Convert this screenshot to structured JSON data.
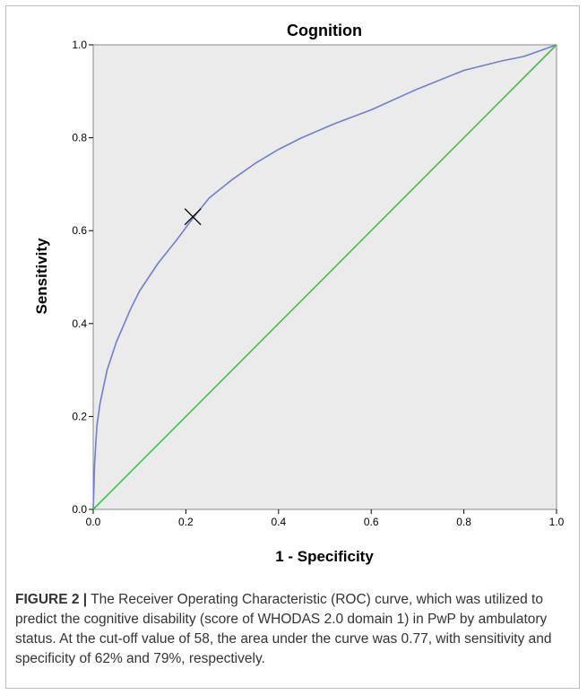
{
  "chart_data": {
    "type": "line",
    "title": "Cognition",
    "xlabel": "1 - Specificity",
    "ylabel": "Sensitivity",
    "xlim": [
      0.0,
      1.0
    ],
    "ylim": [
      0.0,
      1.0
    ],
    "x_ticks": [
      "0.0",
      "0.2",
      "0.4",
      "0.6",
      "0.8",
      "1.0"
    ],
    "y_ticks": [
      "0.0",
      "0.2",
      "0.4",
      "0.6",
      "0.8",
      "1.0"
    ],
    "grid": false,
    "background_color": "#ebebeb",
    "series": [
      {
        "color": "#6f7fcf",
        "x": [
          0.0,
          0.003,
          0.008,
          0.015,
          0.03,
          0.05,
          0.08,
          0.1,
          0.14,
          0.18,
          0.21,
          0.25,
          0.3,
          0.35,
          0.4,
          0.45,
          0.52,
          0.6,
          0.7,
          0.8,
          0.88,
          0.93,
          1.0
        ],
        "y": [
          0.0,
          0.1,
          0.18,
          0.23,
          0.3,
          0.36,
          0.43,
          0.47,
          0.53,
          0.58,
          0.62,
          0.67,
          0.71,
          0.745,
          0.775,
          0.8,
          0.83,
          0.86,
          0.905,
          0.945,
          0.965,
          0.975,
          1.0
        ]
      },
      {
        "color": "#3ec43e",
        "x": [
          0.0,
          1.0
        ],
        "y": [
          0.0,
          1.0
        ]
      }
    ],
    "cutoff_marker": {
      "x": 0.215,
      "y": 0.63
    }
  },
  "caption": {
    "label": "FIGURE 2 |",
    "text": " The Receiver Operating Characteristic (ROC) curve, which was utilized to predict the cognitive disability (score of WHODAS 2.0 domain 1) in PwP by ambulatory status. At the cut-off value of 58, the area under the curve was 0.77, with sensitivity and specificity of 62% and 79%, respectively."
  }
}
